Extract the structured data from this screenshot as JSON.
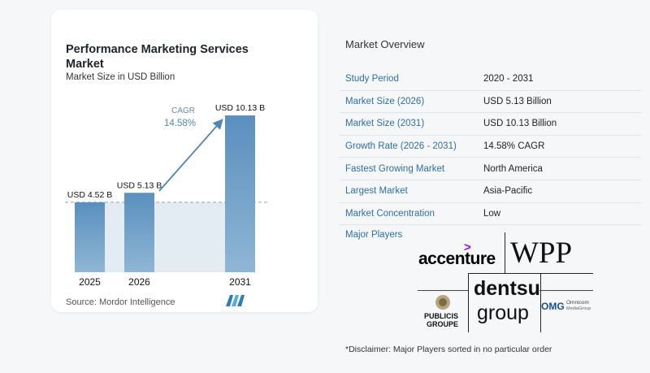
{
  "title": "Performance Marketing Services Market",
  "subtitle": "Market Size in USD Billion",
  "source": "Source:  Mordor Intelligence",
  "chart_data": {
    "type": "bar",
    "categories": [
      "2025",
      "2026",
      "2031"
    ],
    "values": [
      4.52,
      5.13,
      10.13
    ],
    "value_labels": [
      "USD 4.52 B",
      "USD 5.13 B",
      "USD 10.13 B"
    ],
    "title": "Performance Marketing Services Market",
    "subtitle": "Market Size in USD Billion",
    "annotation": {
      "label": "CAGR",
      "value": "14.58%"
    },
    "colors": {
      "bar_top": "#5a8fbe",
      "bar_bottom": "#8fb6d4",
      "baseline_fill": "#e4ecf3",
      "cagr": "#4f86b5"
    },
    "grid": false
  },
  "overview": {
    "title": "Market Overview",
    "rows": [
      {
        "k": "Study Period",
        "v": "2020 - 2031"
      },
      {
        "k": "Market Size (2026)",
        "v": "USD 5.13 Billion"
      },
      {
        "k": "Market Size (2031)",
        "v": "USD 10.13 Billion"
      },
      {
        "k": "Growth Rate (2026 - 2031)",
        "v": "14.58% CAGR"
      },
      {
        "k": "Fastest Growing Market",
        "v": "North America"
      },
      {
        "k": "Largest Market",
        "v": "Asia-Pacific"
      },
      {
        "k": "Market Concentration",
        "v": "Low"
      }
    ]
  },
  "players": {
    "label": "Major Players",
    "accenture": "accenture",
    "wpp": "WPP",
    "publicis_line1": "PUBLICIS",
    "publicis_line2": "GROUPE",
    "dentsu_line1": "dentsu",
    "dentsu_line2": "group",
    "omg": "OMG",
    "omnicom_line1": "Omnicom",
    "omnicom_line2": "MediaGroup"
  },
  "disclaimer": "*Disclaimer: Major Players sorted in no particular order"
}
